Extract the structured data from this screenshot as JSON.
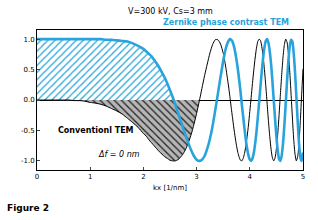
{
  "chart_data": {
    "type": "line",
    "x_label": "kx [1/nm]",
    "caption": "Figure 2",
    "annotations": [
      "V=300 kV, Cs=3 mm",
      "Δf = 0 nm"
    ],
    "xlim": [
      0,
      5
    ],
    "xticks": [
      0,
      1,
      2,
      3,
      4,
      5
    ],
    "ylim": [
      -1.15,
      1.15
    ],
    "yticks": [
      {
        "value": -1,
        "label": "-1.0"
      },
      -0.5,
      {
        "value": 0,
        "label": "0.0"
      },
      0.5,
      {
        "value": 1,
        "label": "1.0"
      }
    ],
    "x": [
      0,
      0.1,
      0.2,
      0.3,
      0.4,
      0.5,
      0.6,
      0.7,
      0.8,
      0.9,
      1.0,
      1.1,
      1.2,
      1.3,
      1.4,
      1.5,
      1.6,
      1.7,
      1.8,
      1.9,
      2.0,
      2.05,
      2.1,
      2.15,
      2.2,
      2.25,
      2.3,
      2.35,
      2.4,
      2.45,
      2.5,
      2.55,
      2.6,
      2.65,
      2.7,
      2.75,
      2.8,
      2.85,
      2.9,
      2.95,
      3.0,
      3.05,
      3.1,
      3.15,
      3.2,
      3.25,
      3.3,
      3.35,
      3.4,
      3.45,
      3.5,
      3.525,
      3.55,
      3.575,
      3.6,
      3.625,
      3.65,
      3.675,
      3.7,
      3.725,
      3.75,
      3.775,
      3.8,
      3.825,
      3.85,
      3.875,
      3.9,
      3.925,
      3.95,
      3.975,
      4.0,
      4.025,
      4.05,
      4.075,
      4.1,
      4.125,
      4.15,
      4.175,
      4.2,
      4.225,
      4.25,
      4.275,
      4.3,
      4.325,
      4.35,
      4.375,
      4.4,
      4.425,
      4.45,
      4.475,
      4.5,
      4.525,
      4.55,
      4.575,
      4.6,
      4.625,
      4.65,
      4.675,
      4.7,
      4.725,
      4.75,
      4.775,
      4.8,
      4.825,
      4.85,
      4.875,
      4.9,
      4.925,
      4.95,
      4.975,
      5.0
    ],
    "series": [
      {
        "name": "Zernike phase contrast TEM",
        "color": "#29a3dc",
        "line_style": "solid",
        "values": [
          1,
          1,
          1,
          1,
          1,
          1,
          1,
          1,
          1,
          1,
          1,
          1,
          1,
          0.99,
          0.99,
          0.98,
          0.97,
          0.96,
          0.93,
          0.89,
          0.84,
          0.8,
          0.76,
          0.72,
          0.66,
          0.6,
          0.53,
          0.45,
          0.37,
          0.27,
          0.16,
          0.05,
          -0.08,
          -0.21,
          -0.34,
          -0.47,
          -0.6,
          -0.72,
          -0.83,
          -0.92,
          -0.98,
          -1.0,
          -0.98,
          -0.92,
          -0.8,
          -0.64,
          -0.43,
          -0.17,
          0.1,
          0.38,
          0.64,
          0.75,
          0.85,
          0.92,
          0.97,
          1.0,
          0.99,
          0.96,
          0.89,
          0.79,
          0.66,
          0.51,
          0.33,
          0.14,
          -0.07,
          -0.27,
          -0.47,
          -0.65,
          -0.8,
          -0.91,
          -0.98,
          -1.0,
          -0.96,
          -0.87,
          -0.72,
          -0.53,
          -0.29,
          -0.04,
          0.22,
          0.47,
          0.69,
          0.86,
          0.97,
          1.0,
          0.94,
          0.8,
          0.59,
          0.31,
          0,
          -0.31,
          -0.6,
          -0.83,
          -0.97,
          -1.0,
          -0.91,
          -0.71,
          -0.41,
          -0.06,
          0.31,
          0.64,
          0.88,
          0.99,
          0.96,
          0.77,
          0.46,
          0.06,
          -0.35,
          -0.71,
          -0.94,
          -1.0,
          -0.86
        ]
      },
      {
        "name": "Conventionl TEM",
        "color": "#000000",
        "line_style": "solid",
        "values": [
          0,
          0,
          0,
          0,
          0,
          0,
          0,
          -0.01,
          -0.01,
          -0.02,
          -0.04,
          -0.05,
          -0.07,
          -0.1,
          -0.14,
          -0.18,
          -0.23,
          -0.3,
          -0.37,
          -0.45,
          -0.55,
          -0.59,
          -0.65,
          -0.7,
          -0.75,
          -0.8,
          -0.85,
          -0.89,
          -0.93,
          -0.96,
          -0.99,
          -1.0,
          -1.0,
          -0.98,
          -0.94,
          -0.88,
          -0.8,
          -0.69,
          -0.56,
          -0.4,
          -0.22,
          -0.02,
          0.19,
          0.4,
          0.59,
          0.77,
          0.91,
          0.99,
          0.99,
          0.92,
          0.77,
          0.66,
          0.53,
          0.38,
          0.23,
          0.06,
          -0.12,
          -0.29,
          -0.46,
          -0.61,
          -0.75,
          -0.86,
          -0.94,
          -0.99,
          -1.0,
          -0.96,
          -0.88,
          -0.76,
          -0.6,
          -0.41,
          -0.19,
          0.04,
          0.27,
          0.49,
          0.69,
          0.85,
          0.96,
          1.0,
          0.98,
          0.88,
          0.72,
          0.5,
          0.24,
          -0.05,
          -0.34,
          -0.6,
          -0.81,
          -0.95,
          -1.0,
          -0.95,
          -0.8,
          -0.56,
          -0.25,
          0.09,
          0.42,
          0.71,
          0.91,
          1.0,
          0.95,
          0.77,
          0.48,
          0.11,
          -0.28,
          -0.64,
          -0.89,
          -1.0,
          -0.93,
          -0.71,
          -0.34,
          0.09,
          0.51
        ]
      }
    ]
  }
}
